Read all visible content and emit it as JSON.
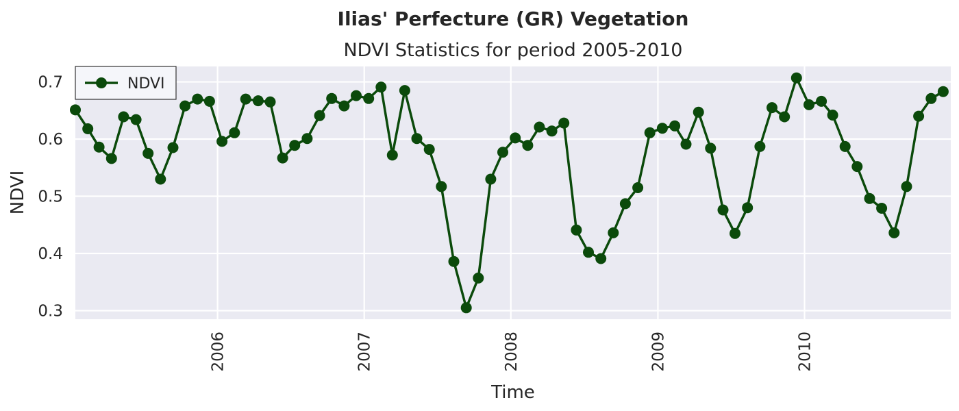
{
  "chart_data": {
    "type": "line",
    "title": "Ilias' Perfecture (GR) Vegetation",
    "subtitle": "NDVI Statistics for period 2005-2010",
    "xlabel": "Time",
    "ylabel": "NDVI",
    "x_ticks": [
      "2006",
      "2007",
      "2008",
      "2009",
      "2010"
    ],
    "y_ticks": [
      "0.3",
      "0.4",
      "0.5",
      "0.6",
      "0.7"
    ],
    "ylim": [
      0.285,
      0.727
    ],
    "xlim": [
      "2005-01-12",
      "2010-12-31"
    ],
    "grid": true,
    "legend_position": "top-left",
    "series": [
      {
        "name": "NDVI",
        "color": "#0b4a0b",
        "marker": "circle",
        "x": [
          "2005-01-12",
          "2005-02-12",
          "2005-03-12",
          "2005-04-12",
          "2005-05-12",
          "2005-06-12",
          "2005-07-12",
          "2005-08-12",
          "2005-09-12",
          "2005-10-12",
          "2005-11-12",
          "2005-12-12",
          "2006-01-12",
          "2006-02-12",
          "2006-03-12",
          "2006-04-12",
          "2006-05-12",
          "2006-06-12",
          "2006-07-12",
          "2006-08-12",
          "2006-09-12",
          "2006-10-12",
          "2006-11-12",
          "2006-12-12",
          "2007-01-12",
          "2007-02-12",
          "2007-03-12",
          "2007-04-12",
          "2007-05-12",
          "2007-06-12",
          "2007-07-12",
          "2007-08-12",
          "2007-09-12",
          "2007-10-12",
          "2007-11-12",
          "2007-12-12",
          "2008-01-12",
          "2008-02-12",
          "2008-03-12",
          "2008-04-12",
          "2008-05-12",
          "2008-06-12",
          "2008-07-12",
          "2008-08-12",
          "2008-09-12",
          "2008-10-12",
          "2008-11-12",
          "2008-12-12",
          "2009-01-12",
          "2009-02-12",
          "2009-03-12",
          "2009-04-12",
          "2009-05-12",
          "2009-06-12",
          "2009-07-12",
          "2009-08-12",
          "2009-09-12",
          "2009-10-12",
          "2009-11-12",
          "2009-12-12",
          "2010-01-12",
          "2010-02-12",
          "2010-03-12",
          "2010-04-12",
          "2010-05-12",
          "2010-06-12",
          "2010-07-12",
          "2010-08-12",
          "2010-09-12",
          "2010-10-12",
          "2010-11-12",
          "2010-12-12"
        ],
        "values": [
          0.651,
          0.618,
          0.586,
          0.566,
          0.639,
          0.634,
          0.575,
          0.53,
          0.585,
          0.658,
          0.67,
          0.666,
          0.596,
          0.611,
          0.67,
          0.667,
          0.665,
          0.567,
          0.589,
          0.601,
          0.641,
          0.671,
          0.658,
          0.676,
          0.671,
          0.691,
          0.572,
          0.685,
          0.601,
          0.582,
          0.517,
          0.386,
          0.305,
          0.357,
          0.53,
          0.577,
          0.602,
          0.589,
          0.621,
          0.614,
          0.628,
          0.441,
          0.402,
          0.391,
          0.436,
          0.487,
          0.515,
          0.611,
          0.619,
          0.623,
          0.591,
          0.647,
          0.584,
          0.476,
          0.435,
          0.48,
          0.587,
          0.655,
          0.639,
          0.707,
          0.66,
          0.666,
          0.642,
          0.587,
          0.552,
          0.496,
          0.479,
          0.436,
          0.517,
          0.64,
          0.671,
          0.683
        ]
      }
    ]
  }
}
